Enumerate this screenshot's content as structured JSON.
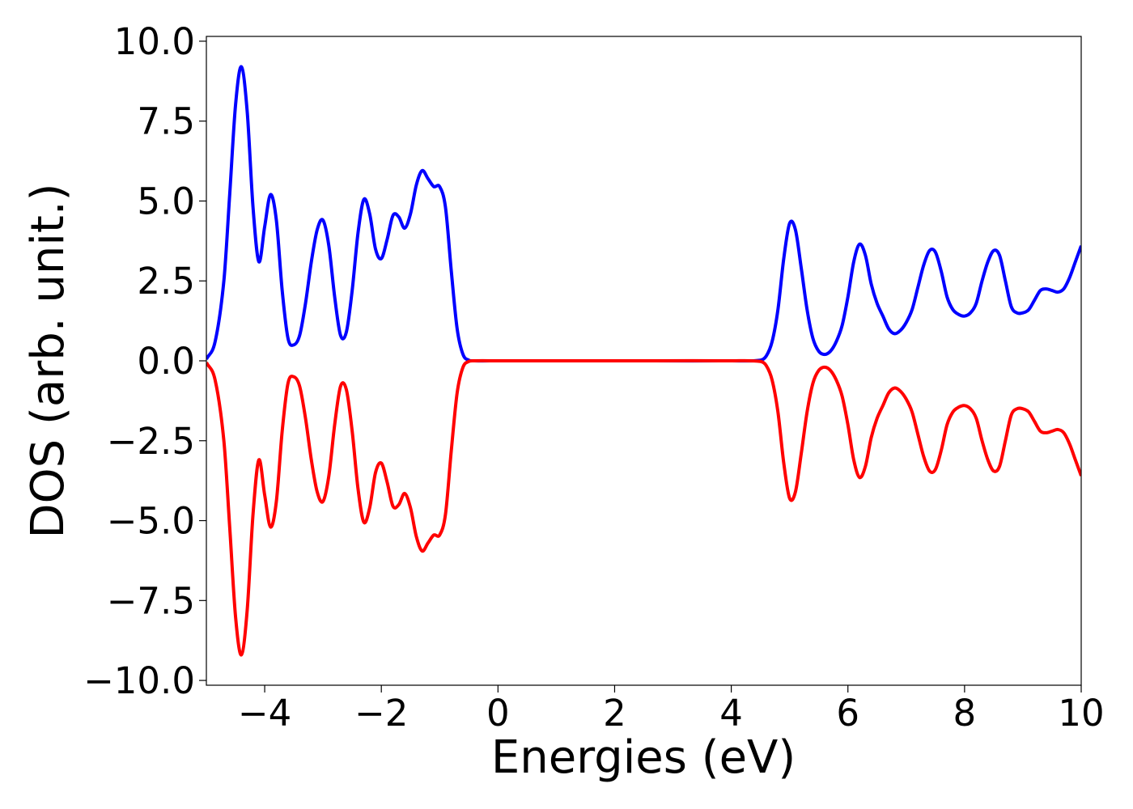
{
  "chart_data": {
    "type": "line",
    "x_label": "Energies (eV)",
    "y_label": "DOS (arb. unit.)",
    "xlim": [
      -5,
      10
    ],
    "ylim": [
      -10.15,
      10.15
    ],
    "xticks": [
      {
        "value": -4,
        "label": "−4"
      },
      {
        "value": -2,
        "label": "−2"
      },
      0,
      2,
      4,
      6,
      8,
      10
    ],
    "yticks": [
      {
        "value": 10,
        "label": "10.0"
      },
      {
        "value": 7.5,
        "label": "7.5"
      },
      {
        "value": 5,
        "label": "5.0"
      },
      {
        "value": 2.5,
        "label": "2.5"
      },
      {
        "value": 0,
        "label": "0.0"
      },
      {
        "value": -2.5,
        "label": "−2.5"
      },
      {
        "value": -5,
        "label": "−5.0"
      },
      {
        "value": -7.5,
        "label": "−7.5"
      },
      {
        "value": -10,
        "label": "−10.0"
      }
    ],
    "grid": false,
    "x": [
      -5,
      -4.85,
      -4.7,
      -4.6,
      -4.5,
      -4.4,
      -4.3,
      -4.2,
      -4.1,
      -4.0,
      -3.9,
      -3.8,
      -3.7,
      -3.6,
      -3.5,
      -3.4,
      -3.3,
      -3.2,
      -3.1,
      -3.0,
      -2.9,
      -2.8,
      -2.7,
      -2.6,
      -2.5,
      -2.4,
      -2.3,
      -2.2,
      -2.1,
      -2.0,
      -1.9,
      -1.8,
      -1.7,
      -1.6,
      -1.5,
      -1.4,
      -1.3,
      -1.2,
      -1.1,
      -1.0,
      -0.9,
      -0.8,
      -0.7,
      -0.6,
      -0.5,
      -0.4,
      0,
      2,
      4,
      4.5,
      4.6,
      4.7,
      4.8,
      4.9,
      5.0,
      5.1,
      5.2,
      5.3,
      5.4,
      5.5,
      5.6,
      5.7,
      5.8,
      5.9,
      6.0,
      6.1,
      6.2,
      6.3,
      6.4,
      6.5,
      6.6,
      6.7,
      6.8,
      6.9,
      7.0,
      7.1,
      7.2,
      7.3,
      7.4,
      7.5,
      7.6,
      7.7,
      7.8,
      7.9,
      8.0,
      8.1,
      8.2,
      8.3,
      8.4,
      8.5,
      8.6,
      8.7,
      8.8,
      8.9,
      9.0,
      9.1,
      9.2,
      9.3,
      9.4,
      9.5,
      9.6,
      9.7,
      9.8,
      9.9,
      10.0
    ],
    "series": [
      {
        "color": "#0000ff",
        "values": [
          0.05,
          0.6,
          2.5,
          5.2,
          8.0,
          9.2,
          7.8,
          4.8,
          3.1,
          4.2,
          5.2,
          4.4,
          2.2,
          0.7,
          0.5,
          0.8,
          1.8,
          3.1,
          4.1,
          4.4,
          3.6,
          2.0,
          0.8,
          0.9,
          2.2,
          4.0,
          5.05,
          4.6,
          3.5,
          3.2,
          3.8,
          4.55,
          4.5,
          4.15,
          4.6,
          5.5,
          5.95,
          5.7,
          5.45,
          5.45,
          4.8,
          2.8,
          1.0,
          0.2,
          0.02,
          0,
          0,
          0,
          0,
          0.02,
          0.15,
          0.6,
          1.6,
          3.2,
          4.3,
          4.1,
          2.9,
          1.6,
          0.7,
          0.3,
          0.2,
          0.3,
          0.6,
          1.1,
          2.0,
          3.1,
          3.65,
          3.3,
          2.4,
          1.8,
          1.4,
          1.0,
          0.85,
          0.95,
          1.2,
          1.6,
          2.3,
          3.0,
          3.45,
          3.4,
          2.8,
          2.0,
          1.6,
          1.45,
          1.4,
          1.5,
          1.8,
          2.5,
          3.1,
          3.45,
          3.3,
          2.5,
          1.7,
          1.5,
          1.5,
          1.6,
          1.9,
          2.2,
          2.25,
          2.2,
          2.15,
          2.25,
          2.6,
          3.1,
          3.6
        ]
      },
      {
        "color": "#ff0000",
        "values": [
          -0.05,
          -0.6,
          -2.5,
          -5.2,
          -8.0,
          -9.2,
          -7.8,
          -4.8,
          -3.1,
          -4.2,
          -5.2,
          -4.4,
          -2.2,
          -0.7,
          -0.5,
          -0.8,
          -1.8,
          -3.1,
          -4.1,
          -4.4,
          -3.6,
          -2.0,
          -0.8,
          -0.9,
          -2.2,
          -4.0,
          -5.05,
          -4.6,
          -3.5,
          -3.2,
          -3.8,
          -4.55,
          -4.5,
          -4.15,
          -4.6,
          -5.5,
          -5.95,
          -5.7,
          -5.45,
          -5.45,
          -4.8,
          -2.8,
          -1.0,
          -0.2,
          -0.02,
          0,
          0,
          0,
          0,
          -0.02,
          -0.15,
          -0.6,
          -1.6,
          -3.2,
          -4.3,
          -4.1,
          -2.9,
          -1.6,
          -0.7,
          -0.3,
          -0.2,
          -0.3,
          -0.6,
          -1.1,
          -2.0,
          -3.1,
          -3.65,
          -3.3,
          -2.4,
          -1.8,
          -1.4,
          -1.0,
          -0.85,
          -0.95,
          -1.2,
          -1.6,
          -2.3,
          -3.0,
          -3.45,
          -3.4,
          -2.8,
          -2.0,
          -1.6,
          -1.45,
          -1.4,
          -1.5,
          -1.8,
          -2.5,
          -3.1,
          -3.45,
          -3.3,
          -2.5,
          -1.7,
          -1.5,
          -1.5,
          -1.6,
          -1.9,
          -2.2,
          -2.25,
          -2.2,
          -2.15,
          -2.25,
          -2.6,
          -3.1,
          -3.6
        ]
      }
    ]
  }
}
